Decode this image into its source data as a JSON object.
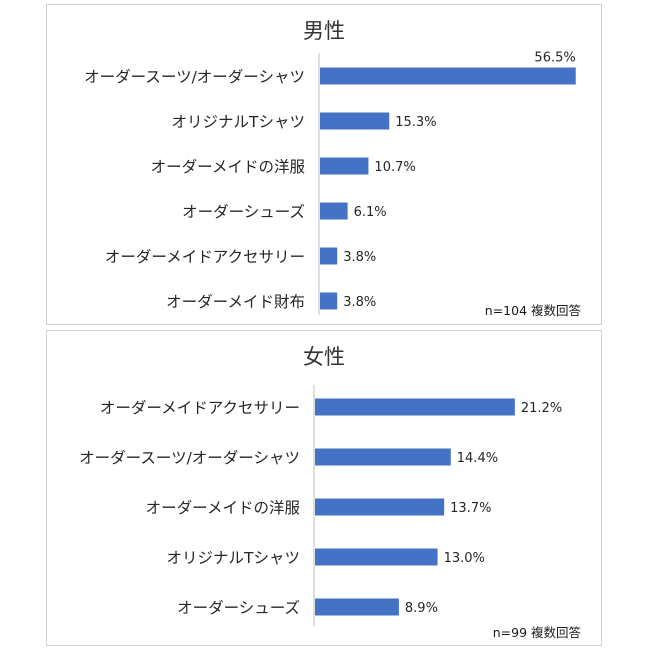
{
  "chart_data": [
    {
      "type": "bar",
      "orientation": "horizontal",
      "title": "男性",
      "categories": [
        "オーダースーツ/オーダーシャツ",
        "オリジナルTシャツ",
        "オーダーメイドの洋服",
        "オーダーシューズ",
        "オーダーメイドアクセサリー",
        "オーダーメイド財布"
      ],
      "values": [
        56.5,
        15.3,
        10.7,
        6.1,
        3.8,
        3.8
      ],
      "value_labels": [
        "56.5%",
        "15.3%",
        "10.7%",
        "6.1%",
        "3.8%",
        "3.8%"
      ],
      "note": "n=104 複数回答",
      "xlim": [
        0,
        57
      ],
      "color": "#4472c4",
      "grid": false
    },
    {
      "type": "bar",
      "orientation": "horizontal",
      "title": "女性",
      "categories": [
        "オーダーメイドアクセサリー",
        "オーダースーツ/オーダーシャツ",
        "オーダーメイドの洋服",
        "オリジナルTシャツ",
        "オーダーシューズ"
      ],
      "values": [
        21.2,
        14.4,
        13.7,
        13.0,
        8.9
      ],
      "value_labels": [
        "21.2%",
        "14.4%",
        "13.7%",
        "13.0%",
        "8.9%"
      ],
      "note": "n=99 複数回答",
      "xlim": [
        0,
        28
      ],
      "color": "#4472c4",
      "grid": false
    }
  ]
}
